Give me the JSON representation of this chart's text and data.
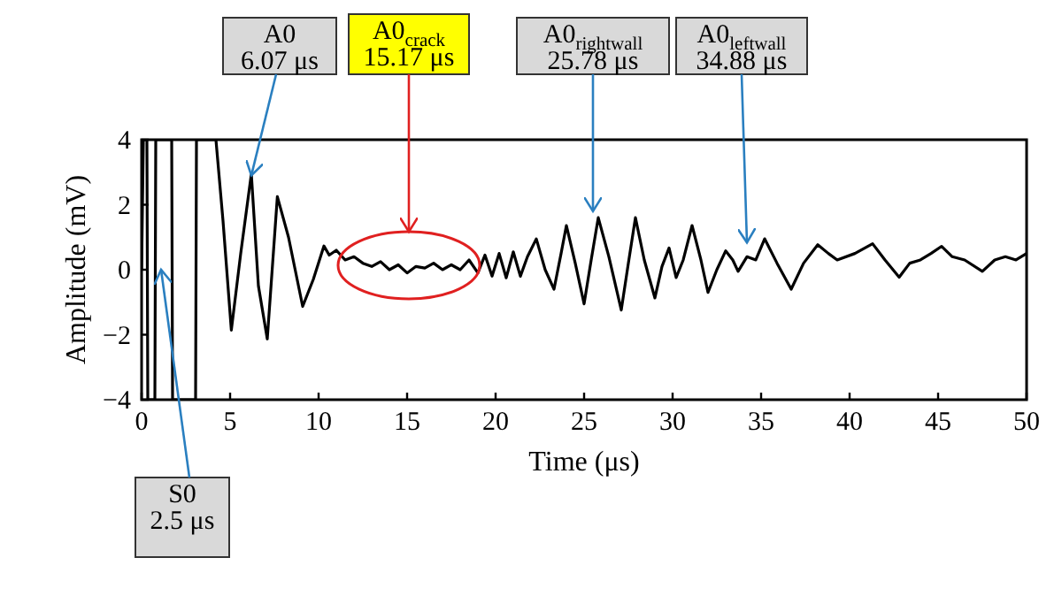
{
  "chart_data": {
    "type": "line",
    "xlabel": "Time (μs)",
    "ylabel": "Amplitude (mV)",
    "xlim": [
      0,
      50
    ],
    "ylim": [
      -4,
      4
    ],
    "xticks": [
      0,
      5,
      10,
      15,
      20,
      25,
      30,
      35,
      40,
      45,
      50
    ],
    "yticks": [
      -4,
      -2,
      0,
      2,
      4
    ],
    "grid": false,
    "marker": "none",
    "line_style": "solid",
    "series": [
      {
        "color": "#000000",
        "x": [
          0,
          0.1,
          0.3,
          0.35,
          0.75,
          0.8,
          1.7,
          1.75,
          3.05,
          3.1,
          4.2,
          4.6,
          5.07,
          5.6,
          6.2,
          6.6,
          7.1,
          7.67,
          8.3,
          9.1,
          9.7,
          10.3,
          10.6,
          11,
          11.5,
          12,
          12.5,
          13,
          13.5,
          14,
          14.5,
          15,
          15.5,
          16,
          16.5,
          17,
          17.5,
          18,
          18.5,
          19,
          19.4,
          19.8,
          20.2,
          20.6,
          21,
          21.4,
          21.8,
          22.3,
          22.8,
          23.3,
          23.7,
          24,
          24.5,
          25,
          25.4,
          25.8,
          26.4,
          27.1,
          27.5,
          27.9,
          28.4,
          29,
          29.4,
          29.8,
          30.2,
          30.6,
          31.1,
          31.6,
          32,
          32.5,
          33,
          33.4,
          33.7,
          34.2,
          34.7,
          35.2,
          35.9,
          36.7,
          37.4,
          38.2,
          38.8,
          39.3,
          40.3,
          41.3,
          42,
          42.8,
          43.4,
          44,
          44.6,
          45.2,
          45.8,
          46.5,
          47.5,
          48.2,
          48.8,
          49.4,
          50
        ],
        "values": [
          0,
          4,
          4,
          -4,
          -4,
          4,
          4,
          -4,
          -4,
          4,
          4,
          1.5,
          -1.86,
          0.5,
          2.95,
          -0.5,
          -2.13,
          2.25,
          1.0,
          -1.13,
          -0.3,
          0.73,
          0.45,
          0.6,
          0.3,
          0.4,
          0.2,
          0.1,
          0.25,
          0.0,
          0.15,
          -0.1,
          0.1,
          0.05,
          0.2,
          0.0,
          0.15,
          0.0,
          0.3,
          -0.1,
          0.45,
          -0.2,
          0.5,
          -0.25,
          0.55,
          -0.2,
          0.4,
          0.95,
          0.0,
          -0.6,
          0.5,
          1.36,
          0.2,
          -1.05,
          0.3,
          1.6,
          0.4,
          -1.24,
          0.2,
          1.6,
          0.3,
          -0.87,
          0.1,
          0.67,
          -0.24,
          0.3,
          1.36,
          0.3,
          -0.7,
          0.0,
          0.58,
          0.3,
          -0.05,
          0.4,
          0.3,
          0.95,
          0.2,
          -0.6,
          0.2,
          0.77,
          0.5,
          0.3,
          0.5,
          0.8,
          0.3,
          -0.23,
          0.2,
          0.3,
          0.5,
          0.72,
          0.4,
          0.3,
          -0.05,
          0.3,
          0.4,
          0.3,
          0.5
        ]
      }
    ],
    "annotations": [
      {
        "text": "A0\n6.07 μs",
        "x": 6.2,
        "y": 2.9
      },
      "A0$_{crack}$\n15.17 μs",
      {
        "text": "A0$_{rightwall}$\n25.78 μs",
        "x": 25.5,
        "y": 1.8
      },
      {
        "text": "A0$_{leftwall}$\n34.88 μs",
        "x": 34.2,
        "y": 0.4
      },
      {
        "text": "S0\n2.5 μs",
        "x": 1.1,
        "y": 0
      }
    ]
  }
}
